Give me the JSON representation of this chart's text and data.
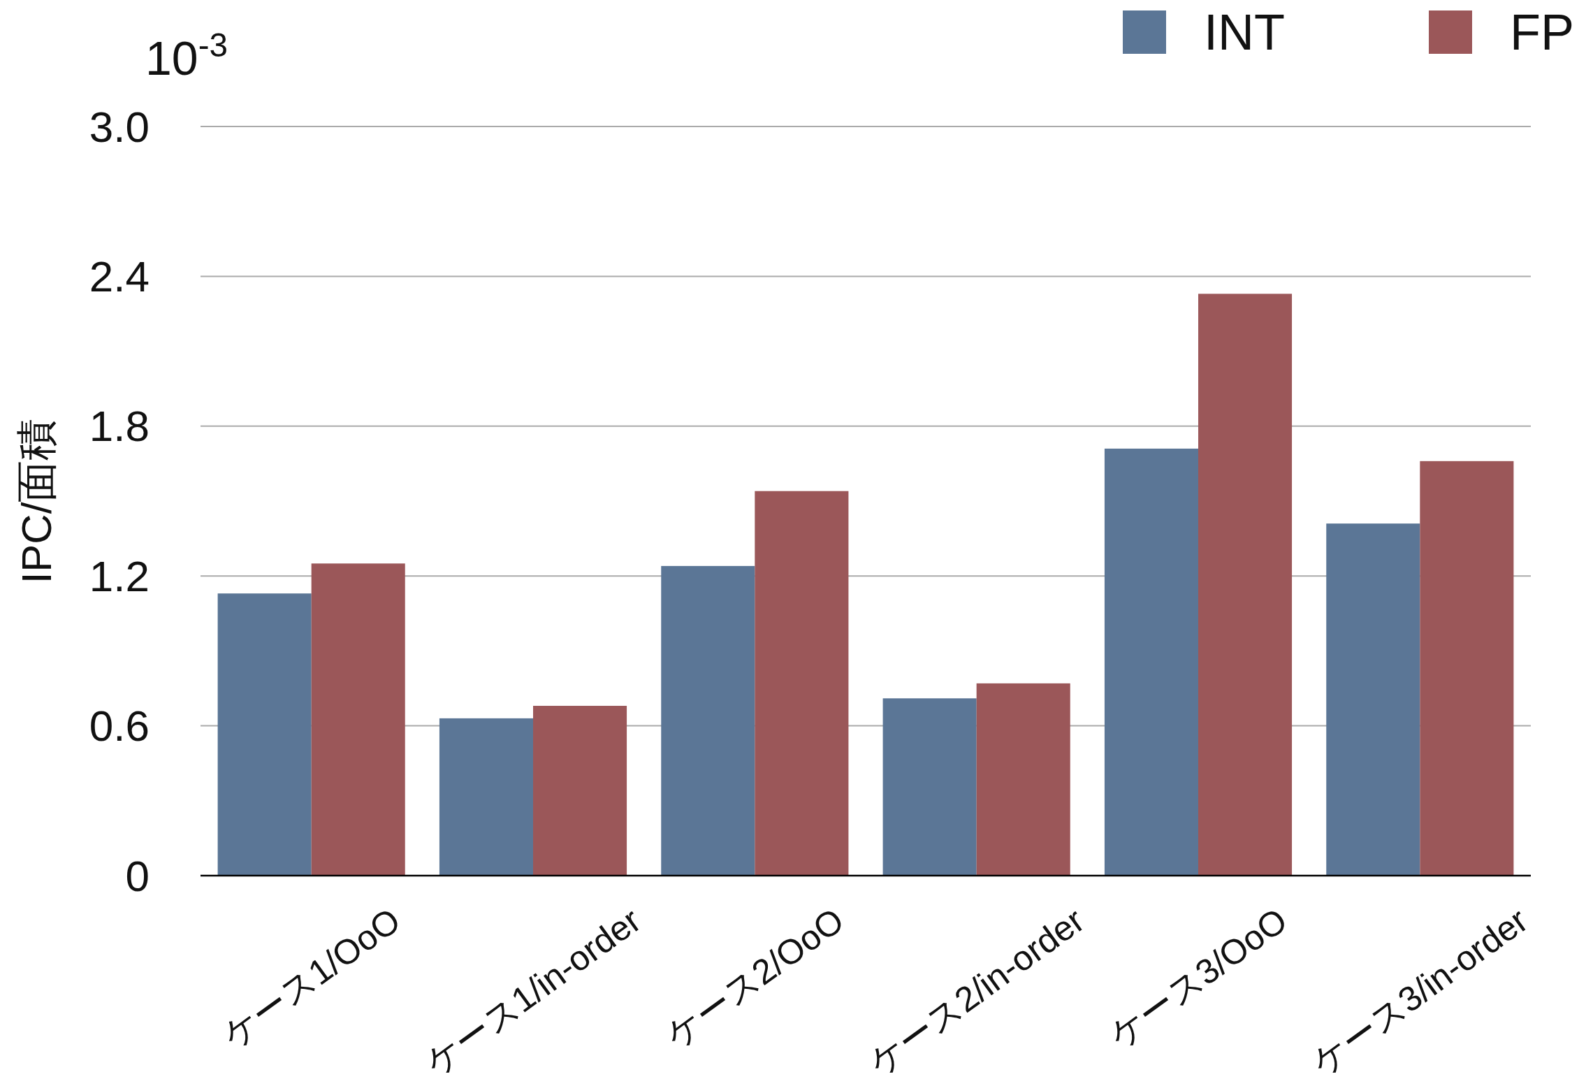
{
  "chart_data": {
    "type": "bar",
    "ylabel": "IPC/面積",
    "annotations": [
      "10$^{-3}$"
    ],
    "categories": [
      "ケース1/OoO",
      "ケース1/in-order",
      "ケース2/OoO",
      "ケース2/in-order",
      "ケース3/OoO",
      "ケース3/in-order"
    ],
    "series": [
      {
        "name": "INT",
        "color": "#5b7696",
        "values": [
          1.13,
          0.63,
          1.24,
          0.71,
          1.71,
          1.41
        ]
      },
      {
        "name": "FP",
        "color": "#9b5759",
        "values": [
          1.25,
          0.68,
          1.54,
          0.77,
          2.33,
          1.66
        ]
      }
    ],
    "ylim": [
      0,
      3
    ],
    "yticks": [
      0,
      0.6,
      1.2,
      1.8,
      2.4,
      {
        "value": 3,
        "label": "3.0"
      }
    ],
    "grid": "y",
    "legend": "top right"
  }
}
